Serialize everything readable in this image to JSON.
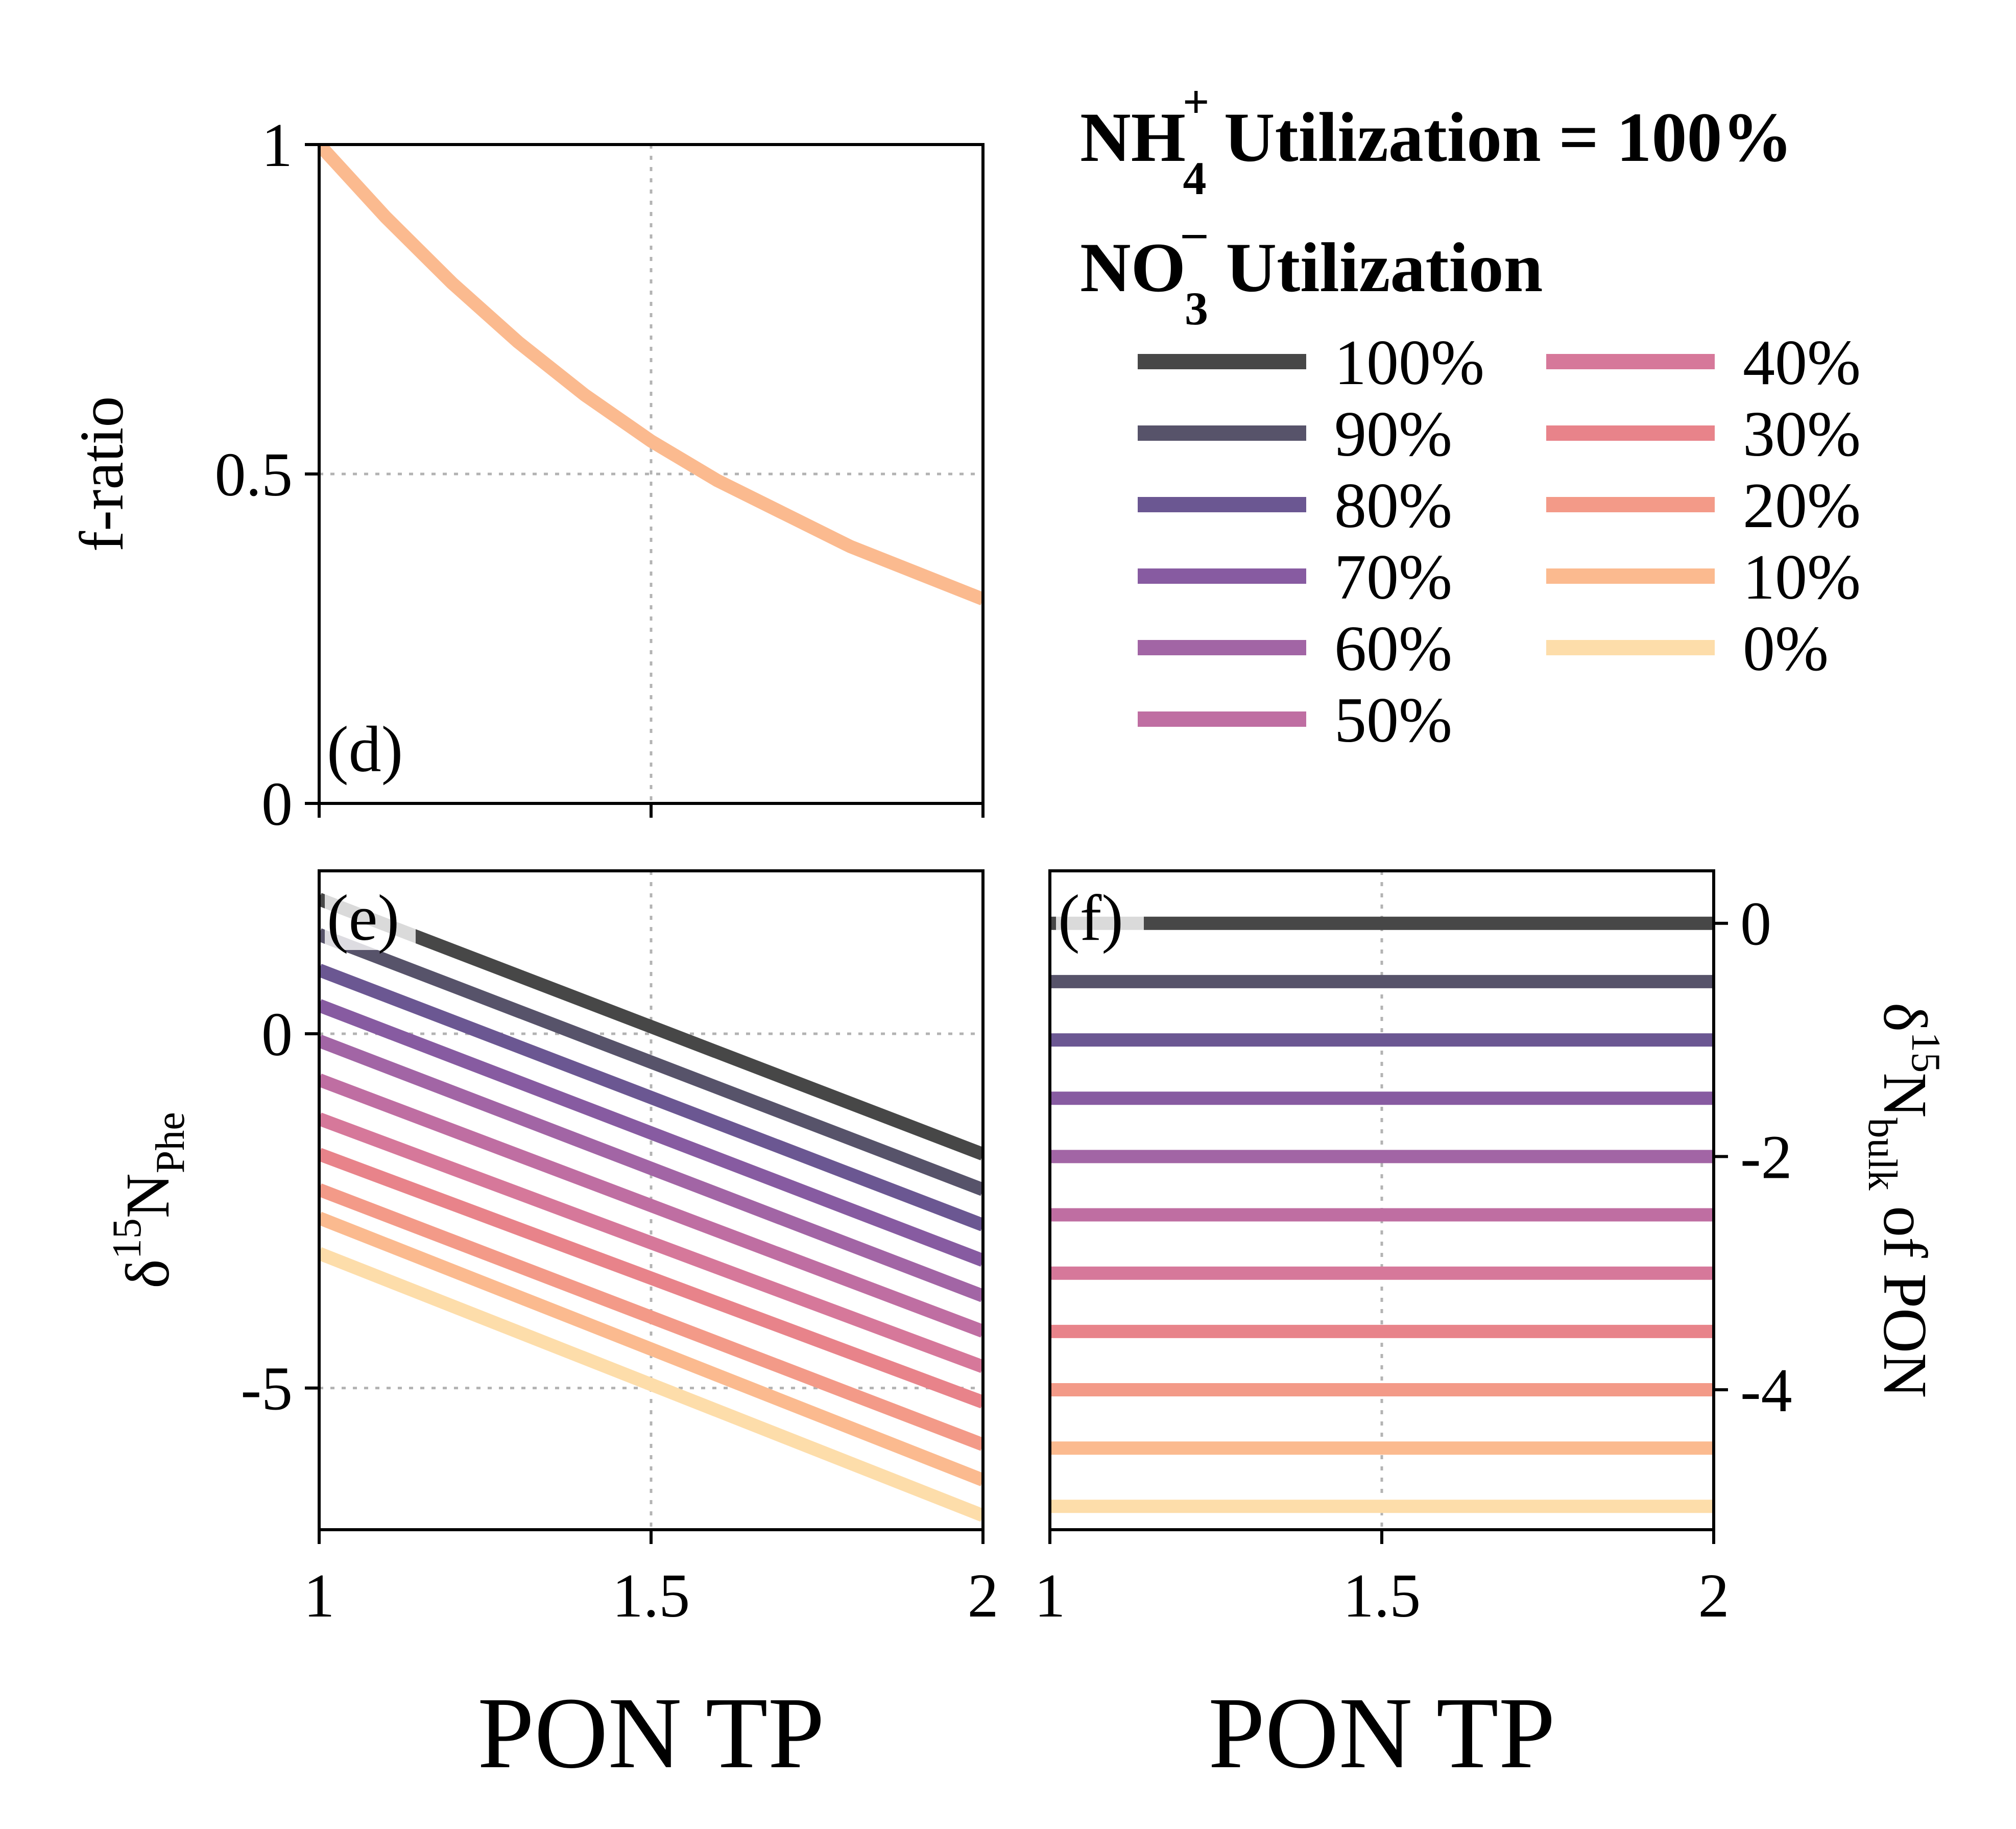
{
  "chart_data": [
    {
      "panel_label": "(d)",
      "type": "line",
      "xlabel": "",
      "ylabel": "f-ratio",
      "xlim": [
        1,
        2
      ],
      "ylim": [
        0,
        1
      ],
      "xticks": [
        "",
        "",
        ""
      ],
      "yticks": [
        "0",
        "0.5",
        "1"
      ],
      "grid": true,
      "series": [
        {
          "color": "#fbba8f",
          "x": [
            1.0,
            1.1,
            1.2,
            1.3,
            1.4,
            1.5,
            1.6,
            1.7,
            1.8,
            1.9,
            2.0
          ],
          "y": [
            1.0,
            0.89,
            0.79,
            0.7,
            0.62,
            0.55,
            0.49,
            0.44,
            0.39,
            0.35,
            0.31
          ]
        }
      ]
    },
    {
      "panel_label": "(e)",
      "type": "line",
      "xlabel": "PON TP",
      "ylabel": "δ15NPhe",
      "ylabel_parts": [
        "δ",
        "15",
        "N",
        "Phe"
      ],
      "xlim": [
        1,
        2
      ],
      "ylim": [
        -7,
        2.3
      ],
      "xticks": [
        "1",
        "1.5",
        "2"
      ],
      "yticks": [
        "0",
        "-5"
      ],
      "grid": true,
      "series": [
        {
          "name": "100%",
          "color": "#474747",
          "x": [
            1,
            2
          ],
          "y": [
            1.9,
            -1.7
          ]
        },
        {
          "name": "90%",
          "color": "#57536a",
          "x": [
            1,
            2
          ],
          "y": [
            1.4,
            -2.2
          ]
        },
        {
          "name": "80%",
          "color": "#6b5792",
          "x": [
            1,
            2
          ],
          "y": [
            0.9,
            -2.7
          ]
        },
        {
          "name": "70%",
          "color": "#875ba1",
          "x": [
            1,
            2
          ],
          "y": [
            0.4,
            -3.2
          ]
        },
        {
          "name": "60%",
          "color": "#a265a5",
          "x": [
            1,
            2
          ],
          "y": [
            -0.1,
            -3.7
          ]
        },
        {
          "name": "50%",
          "color": "#bf6ea2",
          "x": [
            1,
            2
          ],
          "y": [
            -0.65,
            -4.2
          ]
        },
        {
          "name": "40%",
          "color": "#d6789a",
          "x": [
            1,
            2
          ],
          "y": [
            -1.2,
            -4.7
          ]
        },
        {
          "name": "30%",
          "color": "#e8838a",
          "x": [
            1,
            2
          ],
          "y": [
            -1.7,
            -5.2
          ]
        },
        {
          "name": "20%",
          "color": "#f39a88",
          "x": [
            1,
            2
          ],
          "y": [
            -2.2,
            -5.8
          ]
        },
        {
          "name": "10%",
          "color": "#fbba8f",
          "x": [
            1,
            2
          ],
          "y": [
            -2.6,
            -6.3
          ]
        },
        {
          "name": "0%",
          "color": "#fdddaa",
          "x": [
            1,
            2
          ],
          "y": [
            -3.1,
            -6.8
          ]
        }
      ]
    },
    {
      "panel_label": "(f)",
      "type": "line",
      "xlabel": "PON TP",
      "ylabel": "δ15Nbulk of PON",
      "ylabel_parts": [
        "δ",
        "15",
        "N",
        "bulk",
        " of PON"
      ],
      "ylabel_side": "right",
      "xlim": [
        1,
        2
      ],
      "ylim": [
        -5.2,
        0.45
      ],
      "xticks": [
        "1",
        "1.5",
        "2"
      ],
      "yticks": [
        "0",
        "-2",
        "-4"
      ],
      "grid": true,
      "series": [
        {
          "name": "100%",
          "color": "#474747",
          "x": [
            1,
            2
          ],
          "y": [
            0.0,
            0.0
          ]
        },
        {
          "name": "90%",
          "color": "#57536a",
          "x": [
            1,
            2
          ],
          "y": [
            -0.5,
            -0.5
          ]
        },
        {
          "name": "80%",
          "color": "#6b5792",
          "x": [
            1,
            2
          ],
          "y": [
            -1.0,
            -1.0
          ]
        },
        {
          "name": "70%",
          "color": "#875ba1",
          "x": [
            1,
            2
          ],
          "y": [
            -1.5,
            -1.5
          ]
        },
        {
          "name": "60%",
          "color": "#a265a5",
          "x": [
            1,
            2
          ],
          "y": [
            -2.0,
            -2.0
          ]
        },
        {
          "name": "50%",
          "color": "#bf6ea2",
          "x": [
            1,
            2
          ],
          "y": [
            -2.5,
            -2.5
          ]
        },
        {
          "name": "40%",
          "color": "#d6789a",
          "x": [
            1,
            2
          ],
          "y": [
            -3.0,
            -3.0
          ]
        },
        {
          "name": "30%",
          "color": "#e8838a",
          "x": [
            1,
            2
          ],
          "y": [
            -3.5,
            -3.5
          ]
        },
        {
          "name": "20%",
          "color": "#f39a88",
          "x": [
            1,
            2
          ],
          "y": [
            -4.0,
            -4.0
          ]
        },
        {
          "name": "10%",
          "color": "#fbba8f",
          "x": [
            1,
            2
          ],
          "y": [
            -4.5,
            -4.5
          ]
        },
        {
          "name": "0%",
          "color": "#fdddaa",
          "x": [
            1,
            2
          ],
          "y": [
            -5.0,
            -5.0
          ]
        }
      ]
    }
  ],
  "legend": {
    "title_line1": {
      "prefix": "NH",
      "sub": "4",
      "sup": "+",
      "suffix": " Utilization = 100%"
    },
    "title_line2": {
      "prefix": "NO",
      "sub": "3",
      "sup": "–",
      "suffix": " Utilization"
    },
    "columns": 2,
    "entries": [
      {
        "label": "100%",
        "color": "#474747"
      },
      {
        "label": "90%",
        "color": "#57536a"
      },
      {
        "label": "80%",
        "color": "#6b5792"
      },
      {
        "label": "70%",
        "color": "#875ba1"
      },
      {
        "label": "60%",
        "color": "#a265a5"
      },
      {
        "label": "50%",
        "color": "#bf6ea2"
      },
      {
        "label": "40%",
        "color": "#d6789a"
      },
      {
        "label": "30%",
        "color": "#e8838a"
      },
      {
        "label": "20%",
        "color": "#f39a88"
      },
      {
        "label": "10%",
        "color": "#fbba8f"
      },
      {
        "label": "0%",
        "color": "#fdddaa"
      }
    ]
  }
}
